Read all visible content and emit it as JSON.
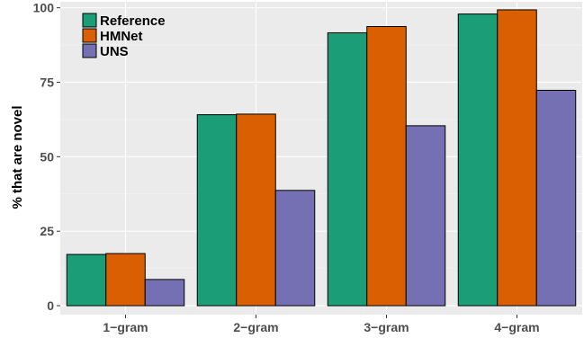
{
  "chart_data": {
    "type": "bar",
    "categories": [
      "1−gram",
      "2−gram",
      "3−gram",
      "4−gram"
    ],
    "series": [
      {
        "name": "Reference",
        "color": "#1b9e77",
        "values": [
          17.2,
          64.1,
          91.6,
          97.9
        ]
      },
      {
        "name": "HMNet",
        "color": "#d95f02",
        "values": [
          17.5,
          64.3,
          93.7,
          99.3
        ]
      },
      {
        "name": "UNS",
        "color": "#7570b3",
        "values": [
          8.8,
          38.7,
          60.4,
          72.3
        ]
      }
    ],
    "ylabel": "% that are novel",
    "xlabel": "",
    "ylim": [
      -3,
      102
    ],
    "yticks": [
      0,
      25,
      50,
      75,
      100
    ],
    "grid": true,
    "legend_position": "top-left"
  }
}
